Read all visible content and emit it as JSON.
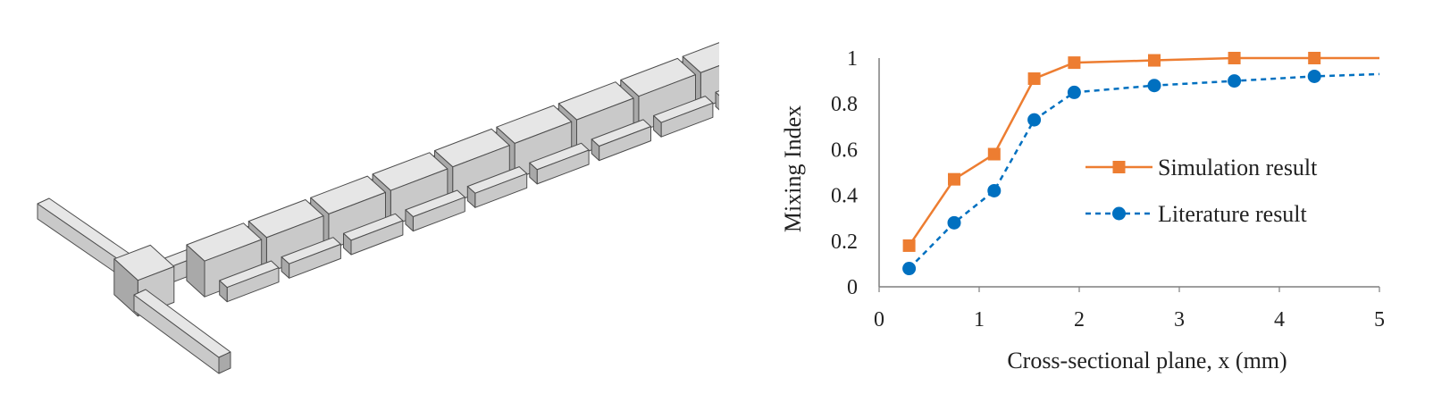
{
  "figure": {
    "left_panel": {
      "description_icon": "micromixer-3d-geometry"
    },
    "colors": {
      "simulation": "#ED7D31",
      "literature": "#0070C0",
      "axis": "#7f7f7f",
      "block_top": "#e6e6e6",
      "block_front": "#c9c9c9",
      "block_side": "#a9a9a9",
      "block_edge": "#4d4d4d"
    }
  },
  "chart_data": {
    "type": "line",
    "xlabel": "Cross-sectional plane, x (mm)",
    "ylabel": "Mixing Index",
    "xlim": [
      0,
      5
    ],
    "ylim": [
      0,
      1
    ],
    "x_ticks": [
      "0",
      "1",
      "2",
      "3",
      "4",
      "5"
    ],
    "y_ticks": [
      "0",
      "0.2",
      "0.4",
      "0.6",
      "0.8",
      "1"
    ],
    "grid": false,
    "legend_position": "right",
    "series": [
      {
        "name": "Simulation result",
        "style": "solid",
        "marker": "square",
        "color": "#ED7D31",
        "x": [
          0.3,
          0.75,
          1.15,
          1.55,
          1.95,
          2.75,
          3.55,
          4.35
        ],
        "y": [
          0.18,
          0.47,
          0.58,
          0.91,
          0.98,
          0.99,
          1.0,
          1.0
        ],
        "extends_to_x": 5.0,
        "extends_to_y": 1.0
      },
      {
        "name": "Literature result",
        "style": "dashed",
        "marker": "circle",
        "color": "#0070C0",
        "x": [
          0.3,
          0.75,
          1.15,
          1.55,
          1.95,
          2.75,
          3.55,
          4.35
        ],
        "y": [
          0.08,
          0.28,
          0.42,
          0.73,
          0.85,
          0.88,
          0.9,
          0.92
        ],
        "extends_to_x": 5.0,
        "extends_to_y": 0.93
      }
    ]
  }
}
